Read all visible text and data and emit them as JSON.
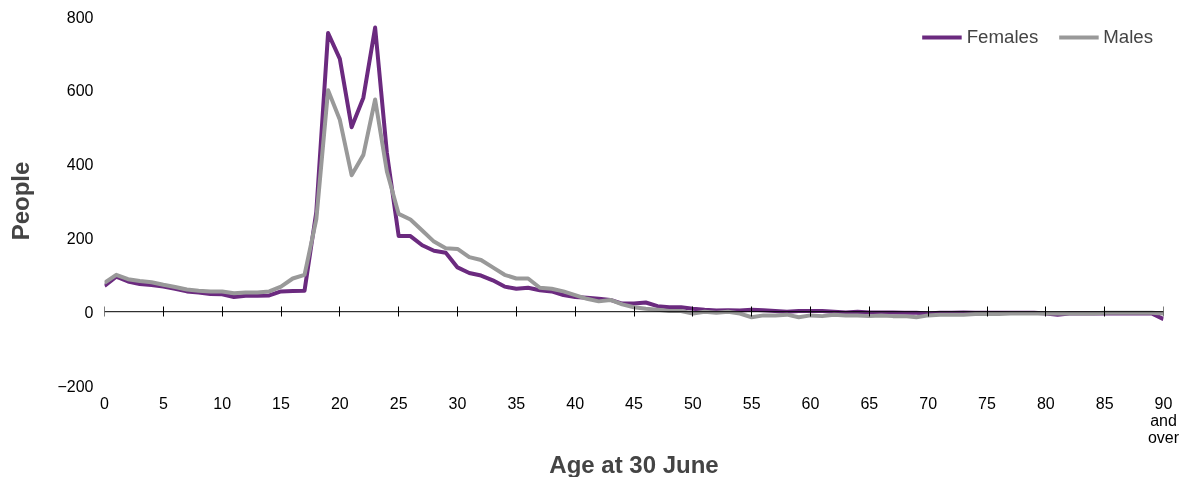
{
  "chart_data": {
    "type": "line",
    "xlabel": "Age at 30 June",
    "ylabel": "People",
    "x": [
      0,
      1,
      2,
      3,
      4,
      5,
      6,
      7,
      8,
      9,
      10,
      11,
      12,
      13,
      14,
      15,
      16,
      17,
      18,
      19,
      20,
      21,
      22,
      23,
      24,
      25,
      26,
      27,
      28,
      29,
      30,
      31,
      32,
      33,
      34,
      35,
      36,
      37,
      38,
      39,
      40,
      41,
      42,
      43,
      44,
      45,
      46,
      47,
      48,
      49,
      50,
      51,
      52,
      53,
      54,
      55,
      56,
      57,
      58,
      59,
      60,
      61,
      62,
      63,
      64,
      65,
      66,
      67,
      68,
      69,
      70,
      71,
      72,
      73,
      74,
      75,
      76,
      77,
      78,
      79,
      80,
      81,
      82,
      83,
      84,
      85,
      86,
      87,
      88,
      89,
      90
    ],
    "series": [
      {
        "name": "Females",
        "color": "#6b2a7f",
        "values": [
          70,
          95,
          82,
          75,
          72,
          68,
          62,
          55,
          52,
          48,
          47,
          40,
          43,
          43,
          44,
          55,
          56,
          57,
          270,
          755,
          685,
          500,
          580,
          770,
          430,
          205,
          205,
          180,
          165,
          160,
          120,
          105,
          98,
          85,
          68,
          62,
          65,
          58,
          55,
          45,
          40,
          38,
          35,
          32,
          22,
          22,
          25,
          15,
          12,
          12,
          8,
          5,
          3,
          4,
          3,
          5,
          4,
          2,
          0,
          2,
          2,
          2,
          0,
          -2,
          0,
          -2,
          -2,
          -2,
          -3,
          -3,
          -5,
          -3,
          -3,
          -2,
          -3,
          -3,
          -3,
          -3,
          -3,
          -3,
          -5,
          -8,
          -5,
          -5,
          -5,
          -5,
          -5,
          -5,
          -5,
          -5,
          -20
        ]
      },
      {
        "name": "Males",
        "color": "#999999",
        "values": [
          78,
          100,
          88,
          83,
          80,
          73,
          67,
          60,
          57,
          55,
          55,
          50,
          52,
          52,
          55,
          68,
          90,
          100,
          250,
          600,
          520,
          370,
          425,
          575,
          380,
          265,
          250,
          220,
          190,
          172,
          170,
          148,
          140,
          120,
          100,
          90,
          90,
          65,
          62,
          55,
          45,
          35,
          28,
          32,
          20,
          12,
          8,
          5,
          2,
          2,
          -5,
          0,
          -3,
          0,
          -5,
          -15,
          -10,
          -10,
          -8,
          -15,
          -10,
          -12,
          -8,
          -10,
          -10,
          -12,
          -10,
          -12,
          -12,
          -15,
          -10,
          -8,
          -8,
          -8,
          -6,
          -6,
          -6,
          -5,
          -5,
          -5,
          -5,
          -5,
          -5,
          -5,
          -5,
          -3,
          -3,
          -3,
          -3,
          -3,
          -5
        ]
      }
    ],
    "xlim": [
      0,
      90
    ],
    "ylim": [
      -200,
      800
    ],
    "xticks": [
      0,
      5,
      10,
      15,
      20,
      25,
      30,
      35,
      40,
      45,
      50,
      55,
      60,
      65,
      70,
      75,
      80,
      85,
      {
        "value": 90,
        "label": "90\nand\nover"
      }
    ],
    "yticks": [
      -200,
      0,
      200,
      400,
      600,
      800
    ],
    "ref_lines": [
      {
        "axis": "y",
        "value": 0,
        "color": "#000000"
      }
    ],
    "grid": false,
    "legend": "top right",
    "line_style": "solid",
    "marker": "none"
  }
}
